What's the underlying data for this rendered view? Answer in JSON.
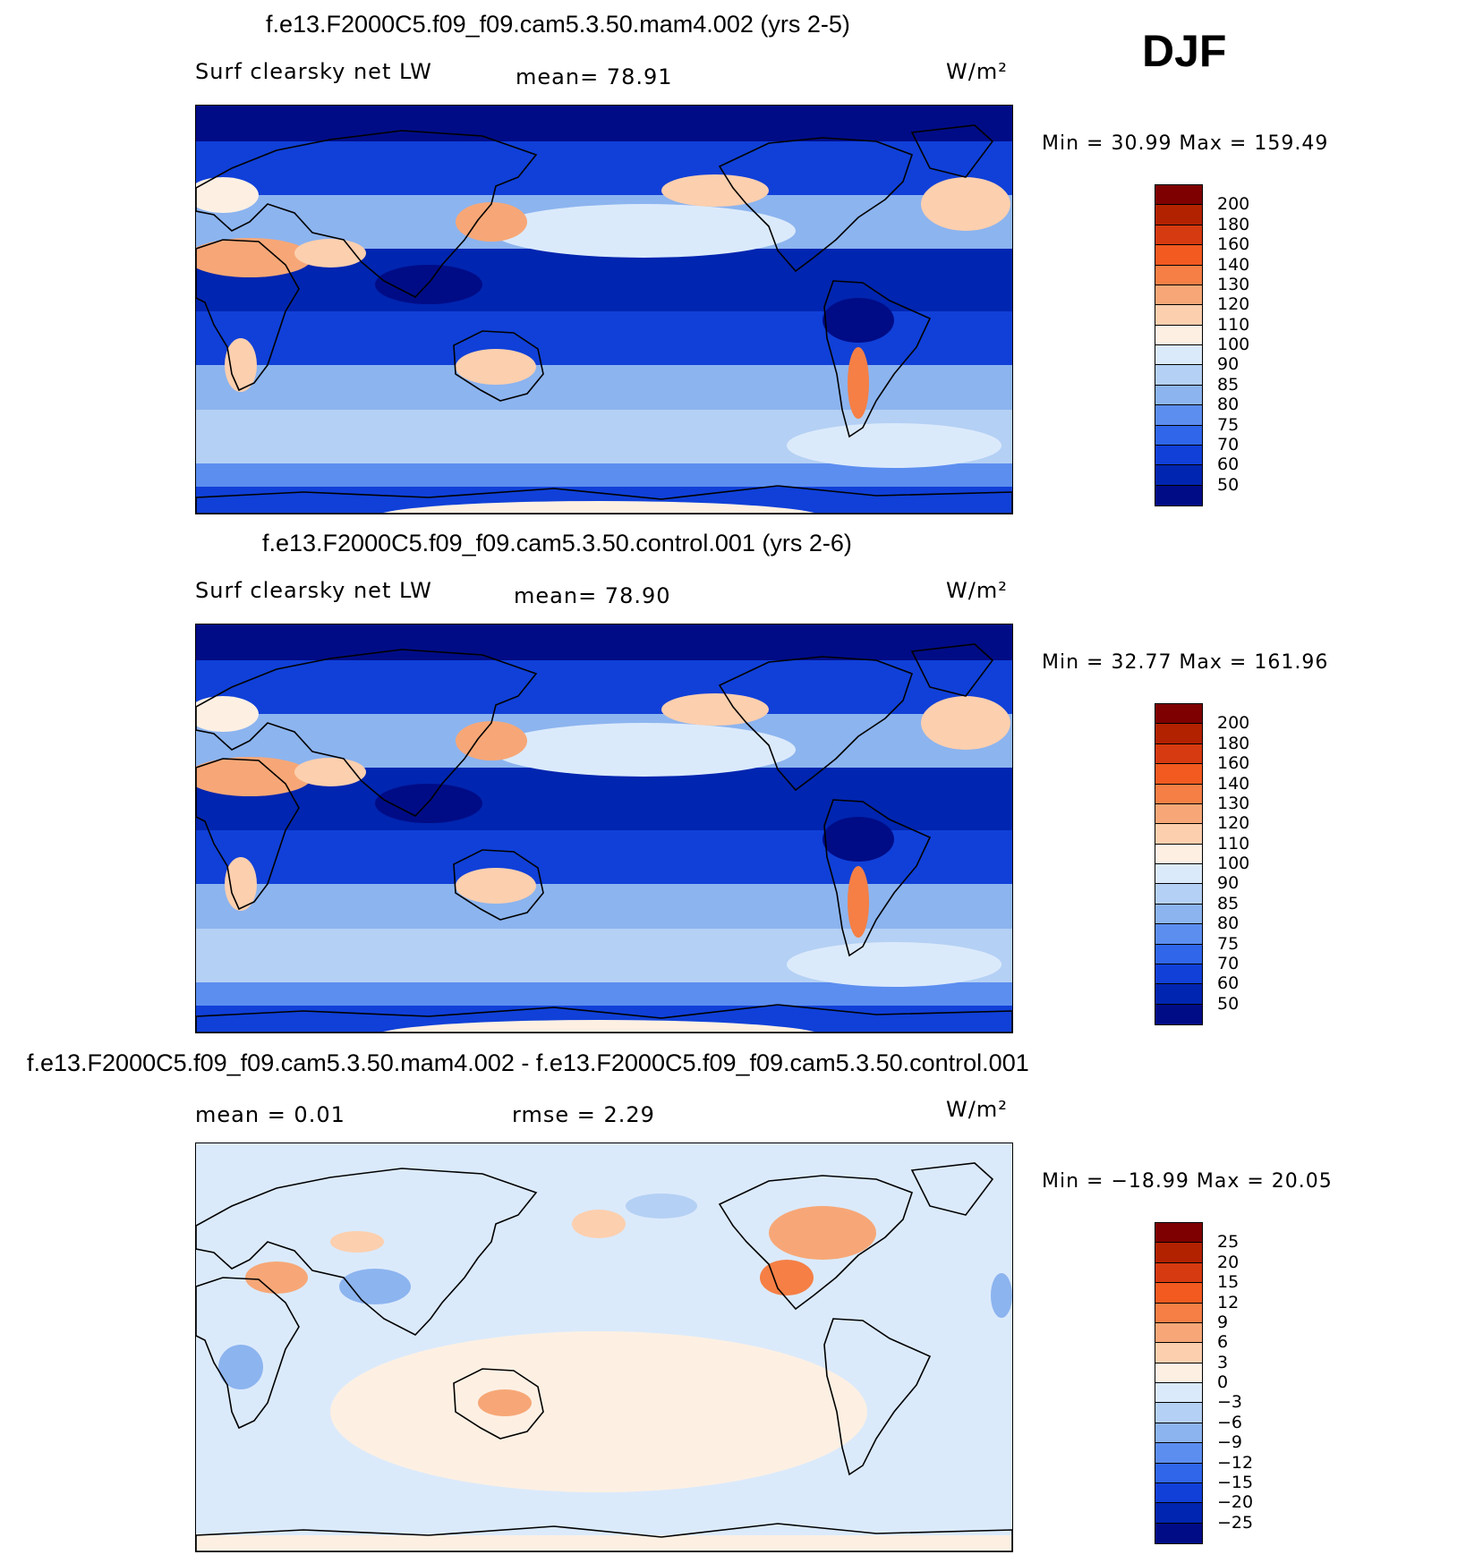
{
  "season": "DJF",
  "panels": [
    {
      "title": "f.e13.F2000C5.f09_f09.cam5.3.50.mam4.002 (yrs 2-5)",
      "left_label": "Surf clearsky net LW",
      "mid_label": "mean=  78.91",
      "units": "W/m²",
      "minmax": "Min =   30.99  Max  =  159.49",
      "levels": [
        "200",
        "180",
        "160",
        "140",
        "130",
        "120",
        "110",
        "100",
        "90",
        "85",
        "80",
        "75",
        "70",
        "60",
        "50"
      ],
      "colors": [
        "#7f0000",
        "#b22200",
        "#d63a10",
        "#f25a20",
        "#f57f45",
        "#f7a777",
        "#fccfae",
        "#fdf0e3",
        "#dbeafb",
        "#b4d0f4",
        "#8cb4ef",
        "#5c8ef0",
        "#2f66ea",
        "#1040d8",
        "#0025b0",
        "#000c86"
      ],
      "kind": "abs"
    },
    {
      "title": "f.e13.F2000C5.f09_f09.cam5.3.50.control.001 (yrs 2-6)",
      "left_label": "Surf clearsky net LW",
      "mid_label": "mean=  78.90",
      "units": "W/m²",
      "minmax": "Min =   32.77  Max  =  161.96",
      "levels": [
        "200",
        "180",
        "160",
        "140",
        "130",
        "120",
        "110",
        "100",
        "90",
        "85",
        "80",
        "75",
        "70",
        "60",
        "50"
      ],
      "colors": [
        "#7f0000",
        "#b22200",
        "#d63a10",
        "#f25a20",
        "#f57f45",
        "#f7a777",
        "#fccfae",
        "#fdf0e3",
        "#dbeafb",
        "#b4d0f4",
        "#8cb4ef",
        "#5c8ef0",
        "#2f66ea",
        "#1040d8",
        "#0025b0",
        "#000c86"
      ],
      "kind": "abs"
    },
    {
      "title": "f.e13.F2000C5.f09_f09.cam5.3.50.mam4.002 - f.e13.F2000C5.f09_f09.cam5.3.50.control.001",
      "left_label": "mean =    0.01",
      "mid_label": "rmse =    2.29",
      "units": "W/m²",
      "minmax": "Min  = −18.99  Max  =    20.05",
      "levels": [
        "25",
        "20",
        "15",
        "12",
        "9",
        "6",
        "3",
        "0",
        "−3",
        "−6",
        "−9",
        "−12",
        "−15",
        "−20",
        "−25"
      ],
      "colors": [
        "#7f0000",
        "#b22200",
        "#d63a10",
        "#f25a20",
        "#f57f45",
        "#f7a777",
        "#fccfae",
        "#fdf0e3",
        "#dbeafb",
        "#b4d0f4",
        "#8cb4ef",
        "#5c8ef0",
        "#2f66ea",
        "#1040d8",
        "#0025b0",
        "#000c86"
      ],
      "kind": "diff"
    }
  ]
}
